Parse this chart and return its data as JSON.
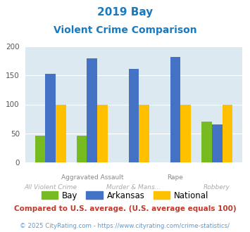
{
  "title_line1": "2019 Bay",
  "title_line2": "Violent Crime Comparison",
  "categories": [
    "All Violent Crime",
    "Aggravated Assault",
    "Murder & Mans...",
    "Rape",
    "Robbery"
  ],
  "row1_labels": [
    "",
    "Aggravated Assault",
    "",
    "Rape",
    ""
  ],
  "row2_labels": [
    "All Violent Crime",
    "",
    "Murder & Mans...",
    "",
    "Robbery"
  ],
  "bay_values": [
    46,
    46,
    0,
    0,
    70
  ],
  "arkansas_values": [
    153,
    179,
    161,
    182,
    65
  ],
  "national_values": [
    100,
    100,
    100,
    100,
    100
  ],
  "bay_color": "#76bc21",
  "arkansas_color": "#4472c4",
  "national_color": "#ffc000",
  "bg_color": "#dce9f0",
  "ylim": [
    0,
    200
  ],
  "yticks": [
    0,
    50,
    100,
    150,
    200
  ],
  "legend_labels": [
    "Bay",
    "Arkansas",
    "National"
  ],
  "footnote1": "Compared to U.S. average. (U.S. average equals 100)",
  "footnote2": "© 2025 CityRating.com - https://www.cityrating.com/crime-statistics/",
  "title_color": "#1a7abf",
  "footnote1_color": "#c0392b",
  "footnote2_color": "#5b9bd5",
  "row1_color": "#888888",
  "row2_color": "#aaaaaa"
}
